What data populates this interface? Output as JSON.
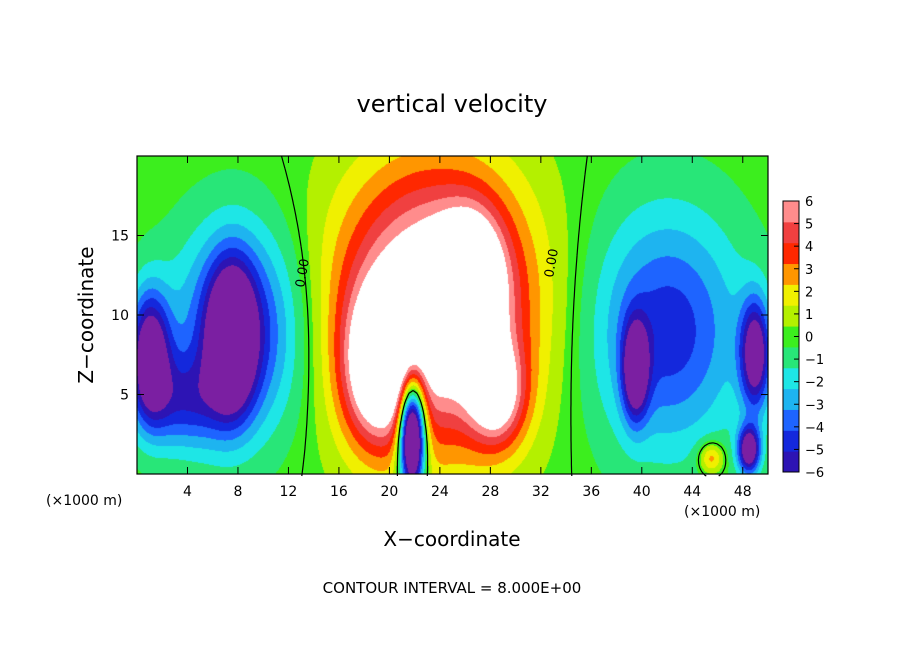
{
  "chart_data": {
    "type": "heatmap",
    "title": "vertical velocity",
    "xlabel": "X−coordinate",
    "ylabel": "Z−coordinate",
    "x_unit": "(×1000 m)",
    "x_unit_right": "(×1000 m)",
    "xlim": [
      0,
      50
    ],
    "ylim": [
      0,
      20
    ],
    "x_ticks": [
      4,
      8,
      12,
      16,
      20,
      24,
      28,
      32,
      36,
      40,
      44,
      48
    ],
    "x_tick_labels": [
      "4",
      "8",
      "12",
      "16",
      "20",
      "24",
      "28",
      "32",
      "36",
      "40",
      "44",
      "48"
    ],
    "y_ticks": [
      5,
      10,
      15
    ],
    "y_tick_labels": [
      "5",
      "10",
      "15"
    ],
    "colorbar": {
      "min": -6,
      "max": 6,
      "ticks": [
        6,
        5,
        4,
        3,
        2,
        1,
        0,
        -1,
        -2,
        -3,
        -4,
        -5,
        -6
      ],
      "tick_labels": [
        "6",
        "5",
        "4",
        "3",
        "2",
        "1",
        "0",
        "−1",
        "−2",
        "−3",
        "−4",
        "−5",
        "−6"
      ],
      "colors": [
        "#7b1fa2",
        "#2d14b4",
        "#1428dc",
        "#1e64ff",
        "#1eb4f0",
        "#1ee6e6",
        "#28e678",
        "#3cee1e",
        "#b4f000",
        "#f0f000",
        "#ff9600",
        "#ff2800",
        "#f04040",
        "#ff8c8c",
        "#ffffff"
      ]
    },
    "features": [
      {
        "x": 23.5,
        "z": 10.5,
        "rx": 7.5,
        "rz": 8.5,
        "amp": 9.0
      },
      {
        "x": 19.0,
        "z": 6.5,
        "rx": 2.6,
        "rz": 4.5,
        "amp": 6.0
      },
      {
        "x": 26.5,
        "z": 12.0,
        "rx": 2.4,
        "rz": 4.0,
        "amp": 6.0
      },
      {
        "x": 28.5,
        "z": 5.0,
        "rx": 2.2,
        "rz": 3.2,
        "amp": 5.5
      },
      {
        "x": 21.8,
        "z": 2.5,
        "rx": 1.0,
        "rz": 3.5,
        "amp": -14.0
      },
      {
        "x": 8.0,
        "z": 9.0,
        "rx": 5.0,
        "rz": 6.5,
        "amp": -5.5
      },
      {
        "x": 7.5,
        "z": 8.5,
        "rx": 1.8,
        "rz": 4.5,
        "amp": -7.0
      },
      {
        "x": 1.0,
        "z": 7.5,
        "rx": 1.6,
        "rz": 4.0,
        "amp": -7.5
      },
      {
        "x": 3.5,
        "z": 4.5,
        "rx": 3.5,
        "rz": 3.0,
        "amp": -3.5
      },
      {
        "x": 42.0,
        "z": 9.0,
        "rx": 6.0,
        "rz": 7.5,
        "amp": -4.8
      },
      {
        "x": 39.5,
        "z": 6.5,
        "rx": 1.0,
        "rz": 3.0,
        "amp": -6.5
      },
      {
        "x": 49.0,
        "z": 7.5,
        "rx": 1.2,
        "rz": 3.5,
        "amp": -7.0
      },
      {
        "x": 48.5,
        "z": 1.5,
        "rx": 0.9,
        "rz": 1.5,
        "amp": -7.5
      },
      {
        "x": 45.5,
        "z": 1.0,
        "rx": 1.0,
        "rz": 1.0,
        "amp": 3.5
      }
    ],
    "contour_label": "0.00",
    "footnote": "CONTOUR INTERVAL = 8.000E+00"
  }
}
